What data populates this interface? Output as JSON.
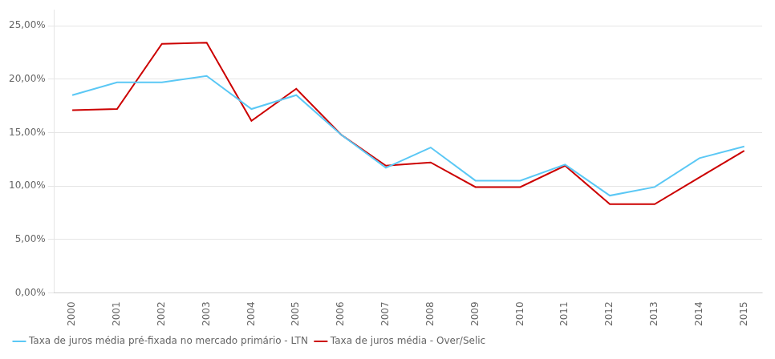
{
  "chart_data": {
    "type": "line",
    "x": [
      2000,
      2001,
      2002,
      2003,
      2004,
      2005,
      2006,
      2007,
      2008,
      2009,
      2010,
      2011,
      2012,
      2013,
      2014,
      2015
    ],
    "xlim": [
      1999.6,
      2015.4
    ],
    "xticks": [
      2000,
      2001,
      2002,
      2003,
      2004,
      2005,
      2006,
      2007,
      2008,
      2009,
      2010,
      2011,
      2012,
      2013,
      2014,
      2015
    ],
    "ylim": [
      0.0,
      0.265
    ],
    "yticks": [
      {
        "value": 0.0,
        "label": "0,00%"
      },
      {
        "value": 0.05,
        "label": "5,00%"
      },
      {
        "value": 0.1,
        "label": "10,00%"
      },
      {
        "value": 0.15,
        "label": "15,00%"
      },
      {
        "value": 0.2,
        "label": "20,00%"
      },
      {
        "value": 0.25,
        "label": "25,00%"
      }
    ],
    "grid": "y",
    "legend": "bottom",
    "series": [
      {
        "name": "Taxa de juros média pré-fixada no mercado primário - LTN",
        "color": "#5bc8f5",
        "values": [
          0.185,
          0.197,
          0.197,
          0.203,
          0.172,
          0.185,
          0.148,
          0.117,
          0.136,
          0.105,
          0.105,
          0.12,
          0.091,
          0.099,
          0.126,
          0.137
        ]
      },
      {
        "name": "Taxa de juros média - Over/Selic",
        "color": "#cc0000",
        "values": [
          0.171,
          0.172,
          0.233,
          0.234,
          0.161,
          0.191,
          0.148,
          0.119,
          0.122,
          0.099,
          0.099,
          0.119,
          0.083,
          0.083,
          0.108,
          0.133
        ]
      }
    ]
  }
}
